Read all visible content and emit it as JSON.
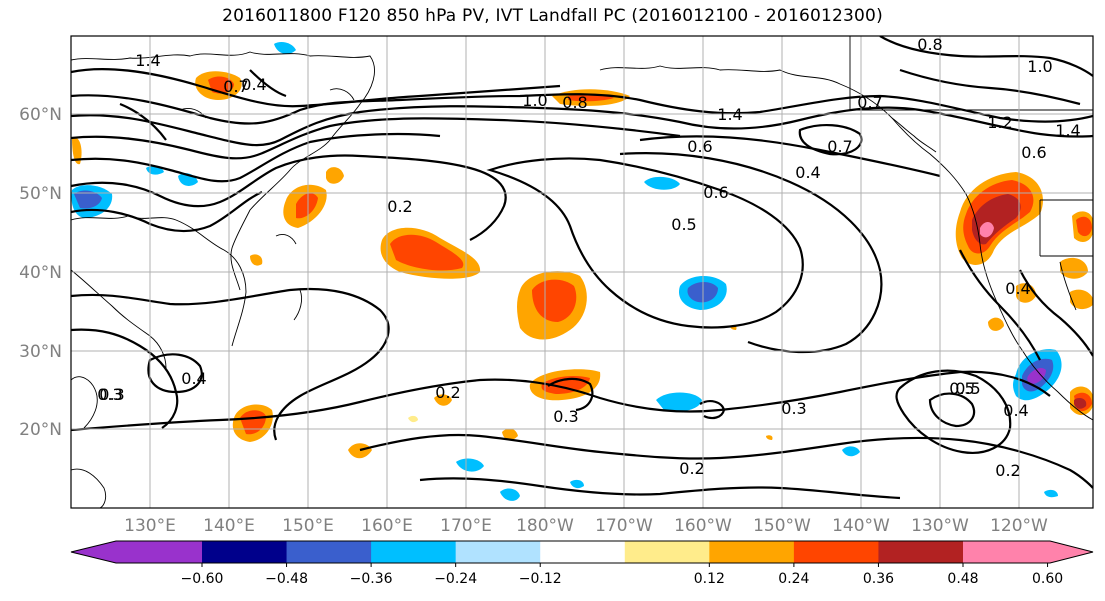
{
  "title": "2016011800 F120 850 hPa PV, IVT Landfall PC (2016012100 - 2016012300)",
  "lat_labels": [
    "60°N",
    "50°N",
    "40°N",
    "30°N",
    "20°N"
  ],
  "lon_labels": [
    "130°E",
    "140°E",
    "150°E",
    "160°E",
    "170°E",
    "180°W",
    "170°W",
    "160°W",
    "150°W",
    "140°W",
    "130°W",
    "120°W"
  ],
  "colorbar": {
    "ticks": [
      "−0.60",
      "−0.48",
      "−0.36",
      "−0.24",
      "−0.12",
      "0.12",
      "0.24",
      "0.36",
      "0.48",
      "0.60"
    ],
    "colors": [
      "#9932CC",
      "#00008B",
      "#3A5FCD",
      "#00BFFF",
      "#B0E2FF",
      "#FFFFFF",
      "#FFEC8B",
      "#FFA500",
      "#FF4500",
      "#B22222",
      "#FF82AB"
    ]
  },
  "contour_labels": [
    "1.4",
    "1.0",
    "0.8",
    "0.7",
    "0.6",
    "0.5",
    "0.4",
    "0.2",
    "0.3",
    "0.7",
    "0.6",
    "0.4",
    "0.5",
    "0.3",
    "0.2",
    "0.2",
    "0.3",
    "0.5",
    "0.4",
    "0.2",
    "1.4",
    "1.0",
    "0.8",
    "0.7",
    "1.2",
    "1.4",
    "0.6",
    "0.4",
    "0.3",
    "0.4"
  ]
}
